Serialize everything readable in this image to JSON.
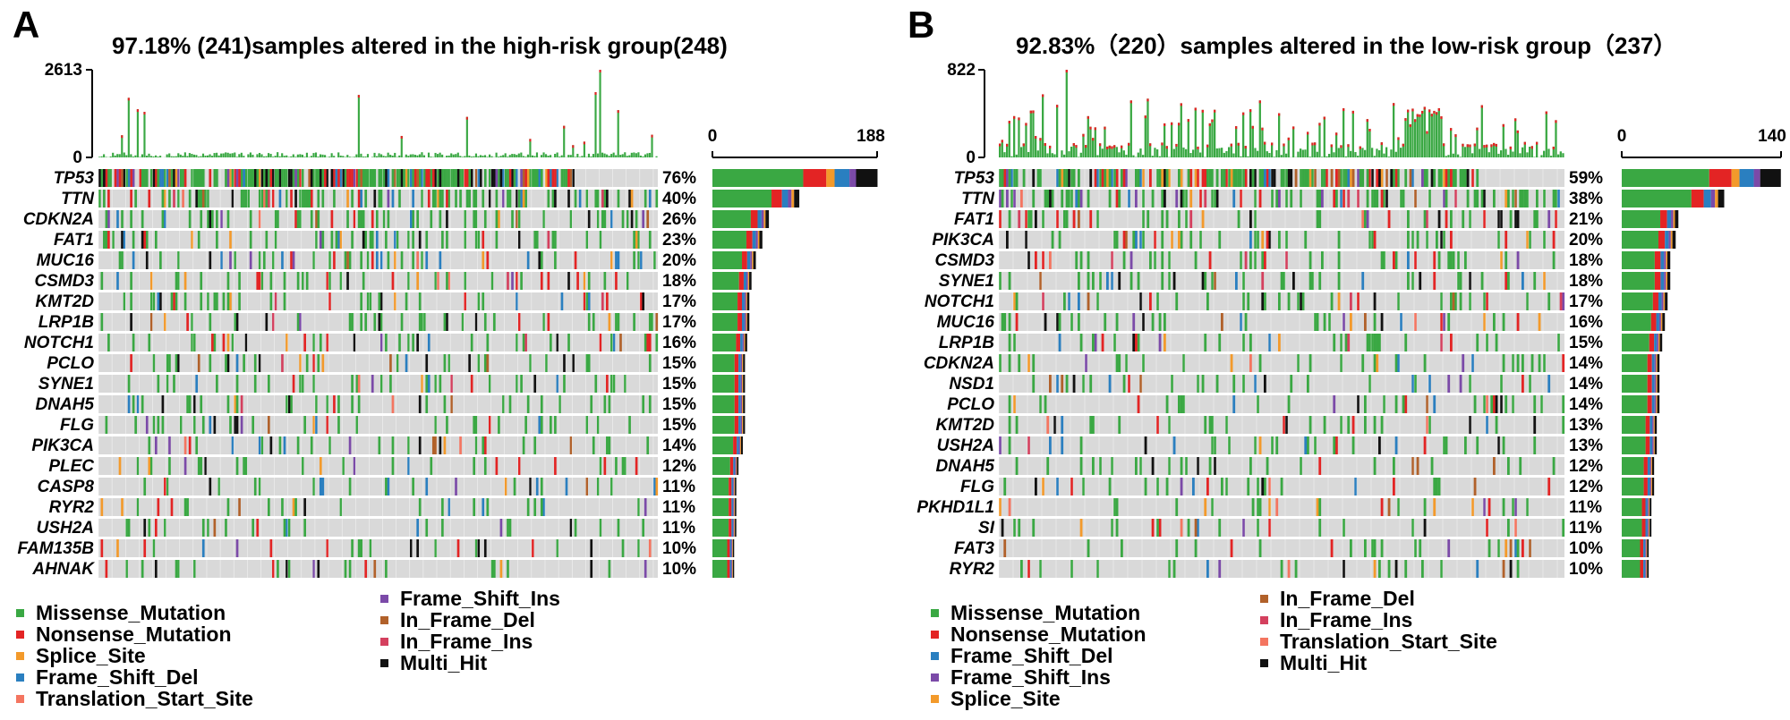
{
  "colors": {
    "Missense_Mutation": "#3aa843",
    "Nonsense_Mutation": "#e32424",
    "Splice_Site": "#f39a2b",
    "Frame_Shift_Del": "#2a7fc0",
    "Frame_Shift_Ins": "#7b4aa8",
    "In_Frame_Del": "#b1612a",
    "In_Frame_Ins": "#d4405e",
    "Translation_Start_Site": "#f47560",
    "Multi_Hit": "#111111",
    "background": "#d9d9d9"
  },
  "chart_data": [
    {
      "type": "heatmap",
      "panel_label": "A",
      "title": "97.18% (241)samples altered in the high-risk group(248)",
      "n_samples": 248,
      "tmb_axis": {
        "max_label": "2613",
        "min_label": "0",
        "max": 2613
      },
      "count_axis": {
        "min_label": "0",
        "max_label": "188",
        "max": 188
      },
      "genes": [
        "TP53",
        "TTN",
        "CDKN2A",
        "FAT1",
        "MUC16",
        "CSMD3",
        "KMT2D",
        "LRP1B",
        "NOTCH1",
        "PCLO",
        "SYNE1",
        "DNAH5",
        "FLG",
        "PIK3CA",
        "PLEC",
        "CASP8",
        "RYR2",
        "USH2A",
        "FAM135B",
        "AHNAK"
      ],
      "percent_labels": [
        "76%",
        "40%",
        "26%",
        "23%",
        "20%",
        "18%",
        "17%",
        "17%",
        "16%",
        "15%",
        "15%",
        "15%",
        "15%",
        "14%",
        "12%",
        "11%",
        "11%",
        "11%",
        "10%",
        "10%"
      ],
      "percentages": [
        76,
        40,
        26,
        23,
        20,
        18,
        17,
        17,
        16,
        15,
        15,
        15,
        15,
        14,
        12,
        11,
        11,
        11,
        10,
        10
      ],
      "legend": [
        [
          "Missense_Mutation",
          "Nonsense_Mutation",
          "Splice_Site",
          "Frame_Shift_Del",
          "Translation_Start_Site"
        ],
        [
          "Frame_Shift_Ins",
          "In_Frame_Del",
          "In_Frame_Ins",
          "Multi_Hit"
        ]
      ]
    },
    {
      "type": "heatmap",
      "panel_label": "B",
      "title": "92.83%（220）samples altered in the low-risk group（237）",
      "n_samples": 237,
      "tmb_axis": {
        "max_label": "822",
        "min_label": "0",
        "max": 822
      },
      "count_axis": {
        "min_label": "0",
        "max_label": "140",
        "max": 140
      },
      "genes": [
        "TP53",
        "TTN",
        "FAT1",
        "PIK3CA",
        "CSMD3",
        "SYNE1",
        "NOTCH1",
        "MUC16",
        "LRP1B",
        "CDKN2A",
        "NSD1",
        "PCLO",
        "KMT2D",
        "USH2A",
        "DNAH5",
        "FLG",
        "PKHD1L1",
        "SI",
        "FAT3",
        "RYR2"
      ],
      "percent_labels": [
        "59%",
        "38%",
        "21%",
        "20%",
        "18%",
        "18%",
        "17%",
        "16%",
        "15%",
        "14%",
        "14%",
        "14%",
        "13%",
        "13%",
        "12%",
        "12%",
        "11%",
        "11%",
        "10%",
        "10%"
      ],
      "percentages": [
        59,
        38,
        21,
        20,
        18,
        18,
        17,
        16,
        15,
        14,
        14,
        14,
        13,
        13,
        12,
        12,
        11,
        11,
        10,
        10
      ],
      "legend": [
        [
          "Missense_Mutation",
          "Nonsense_Mutation",
          "Frame_Shift_Del",
          "Frame_Shift_Ins",
          "Splice_Site"
        ],
        [
          "In_Frame_Del",
          "In_Frame_Ins",
          "Translation_Start_Site",
          "Multi_Hit"
        ]
      ]
    }
  ]
}
